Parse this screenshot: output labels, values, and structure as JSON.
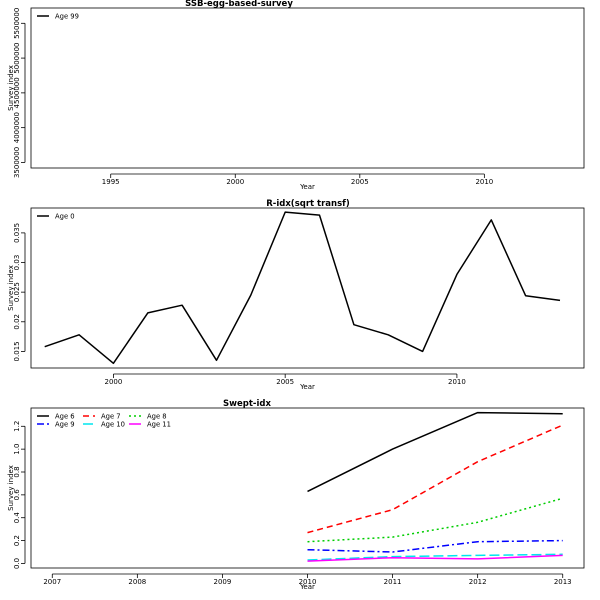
{
  "chart_data": [
    {
      "type": "line",
      "title": "SSB-egg-based-survey",
      "xlabel": "Year",
      "ylabel": "Survey index",
      "xlim": [
        1991.8,
        2014
      ],
      "ylim": [
        3420000,
        5720000
      ],
      "xticks": [
        1995,
        2000,
        2005,
        2010
      ],
      "yticks": [
        3500000,
        4000000,
        4500000,
        5000000,
        5500000
      ],
      "grid": false,
      "legend_position": "top-left",
      "series": [
        {
          "name": "Age 99",
          "color": "#000000",
          "dash": "",
          "x": [],
          "y": []
        }
      ]
    },
    {
      "type": "line",
      "title": "R-idx(sqrt transf)",
      "xlabel": "Year",
      "ylabel": "Survey index",
      "xlim": [
        1997.6,
        2013.7
      ],
      "ylim": [
        0.0122,
        0.0392
      ],
      "xticks": [
        2000,
        2005,
        2010
      ],
      "yticks": [
        0.015,
        0.02,
        0.025,
        0.03,
        0.035
      ],
      "grid": false,
      "legend_position": "top-left",
      "series": [
        {
          "name": "Age 0",
          "color": "#000000",
          "dash": "",
          "x": [
            1998,
            1999,
            2000,
            2001,
            2002,
            2003,
            2004,
            2005,
            2006,
            2007,
            2008,
            2009,
            2010,
            2011,
            2012,
            2013
          ],
          "y": [
            0.0158,
            0.0178,
            0.013,
            0.0215,
            0.0228,
            0.0135,
            0.0245,
            0.0385,
            0.038,
            0.0195,
            0.0178,
            0.015,
            0.028,
            0.0372,
            0.0244,
            0.0236
          ]
        }
      ]
    },
    {
      "type": "line",
      "title": "Swept-idx",
      "xlabel": "Year",
      "ylabel": "Survey index",
      "xlim": [
        2006.75,
        2013.25
      ],
      "ylim": [
        -0.04,
        1.36
      ],
      "xticks": [
        2007,
        2008,
        2009,
        2010,
        2011,
        2012,
        2013
      ],
      "yticks": [
        0.0,
        0.2,
        0.4,
        0.6,
        0.8,
        1.0,
        1.2
      ],
      "ytick_labels": [
        "0.0",
        "0.2",
        "0.4",
        "0.6",
        "0.8",
        "1.0",
        "1.2"
      ],
      "grid": false,
      "legend_position": "top-left",
      "series": [
        {
          "name": "Age 6",
          "color": "#000000",
          "dash": "",
          "x": [
            2010,
            2011,
            2012,
            2013
          ],
          "y": [
            0.63,
            1.0,
            1.32,
            1.31
          ]
        },
        {
          "name": "Age 7",
          "color": "#ff0000",
          "dash": "6,4",
          "x": [
            2010,
            2011,
            2012,
            2013
          ],
          "y": [
            0.27,
            0.47,
            0.89,
            1.21
          ]
        },
        {
          "name": "Age 8",
          "color": "#00cd00",
          "dash": "2,3",
          "x": [
            2010,
            2011,
            2012,
            2013
          ],
          "y": [
            0.19,
            0.23,
            0.36,
            0.57
          ]
        },
        {
          "name": "Age 9",
          "color": "#0000ff",
          "dash": "7,3,2,3",
          "x": [
            2010,
            2011,
            2012,
            2013
          ],
          "y": [
            0.12,
            0.1,
            0.19,
            0.2
          ]
        },
        {
          "name": "Age 10",
          "color": "#00e5ee",
          "dash": "10,4",
          "x": [
            2010,
            2011,
            2012,
            2013
          ],
          "y": [
            0.03,
            0.06,
            0.07,
            0.08
          ]
        },
        {
          "name": "Age 11",
          "color": "#ff00ff",
          "dash": "",
          "x": [
            2010,
            2011,
            2012,
            2013
          ],
          "y": [
            0.02,
            0.05,
            0.04,
            0.07
          ]
        }
      ]
    }
  ]
}
